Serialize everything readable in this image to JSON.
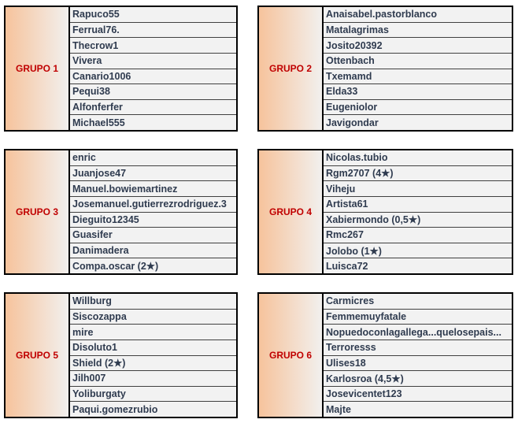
{
  "groups": [
    {
      "label": "GRUPO 1",
      "members": [
        "Rapuco55",
        "Ferrual76.",
        "Thecrow1",
        "Vivera",
        "Canario1006",
        "Pequi38",
        "Alfonferfer",
        "Michael555"
      ]
    },
    {
      "label": "GRUPO 2",
      "members": [
        "Anaisabel.pastorblanco",
        "Matalagrimas",
        "Josito20392",
        "Ottenbach",
        "Txemamd",
        "Elda33",
        "Eugeniolor",
        "Javigondar"
      ]
    },
    {
      "label": "GRUPO 3",
      "members": [
        "enric",
        "Juanjose47",
        "Manuel.bowiemartinez",
        "Josemanuel.gutierrezrodriguez.3",
        "Dieguito12345",
        "Guasifer",
        "Danimadera",
        "Compa.oscar (2★)"
      ]
    },
    {
      "label": "GRUPO 4",
      "members": [
        "Nicolas.tubio",
        "Rgm2707 (4★)",
        "Viheju",
        "Artista61",
        "Xabiermondo (0,5★)",
        "Rmc267",
        "Jolobo (1★)",
        "Luisca72"
      ]
    },
    {
      "label": "GRUPO 5",
      "members": [
        "Willburg",
        "Siscozappa",
        "mire",
        "Disoluto1",
        "Shield (2★)",
        "Jilh007",
        "Yoliburgaty",
        "Paqui.gomezrubio"
      ]
    },
    {
      "label": "GRUPO 6",
      "members": [
        "Carmicres",
        "Femmemuyfatale",
        "Nopuedoconlagallega...quelosepais...",
        "Terroresss",
        "Ulises18",
        "Karlosroa (4,5★)",
        "Josevicentet123",
        "Majte"
      ]
    }
  ],
  "colors": {
    "label_text": "#c00000",
    "member_text": "#2f3b4f",
    "gradient_start": "#f6c39c"
  }
}
